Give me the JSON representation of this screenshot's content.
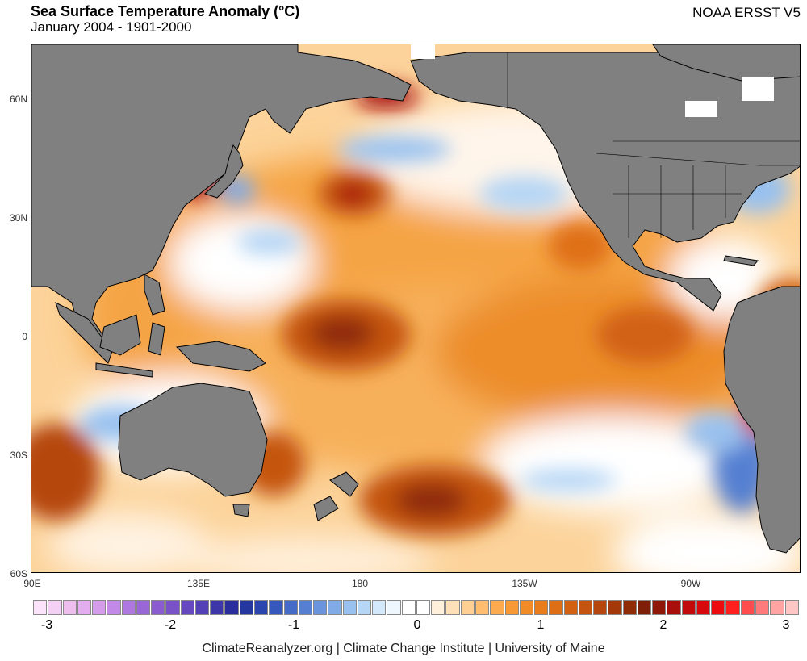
{
  "header": {
    "title": "Sea Surface Temperature Anomaly (°C)",
    "subtitle": "January 2004 - 1901-2000",
    "dataset": "NOAA ERSST V5"
  },
  "map": {
    "lat_labels": [
      "60N",
      "30N",
      "0",
      "30S",
      "60S"
    ],
    "lon_labels": [
      "90E",
      "135E",
      "180",
      "135W",
      "90W"
    ],
    "land_color": "#808080",
    "anomaly_features": [
      {
        "region": "Central Pacific north of Hawaii",
        "value": 1.8
      },
      {
        "region": "Equatorial West-Central Pacific",
        "value": 1.5
      },
      {
        "region": "South Pacific east of New Zealand",
        "value": 1.7
      },
      {
        "region": "Southeast Pacific off Chile",
        "value": -1.2
      },
      {
        "region": "North Pacific near 50N",
        "value": -0.6
      },
      {
        "region": "Peru coast",
        "value": 2.4
      },
      {
        "region": "Sea of Japan",
        "value": 2.0
      }
    ]
  },
  "colorbar": {
    "ticks": [
      "-3",
      "-2",
      "-1",
      "0",
      "1",
      "2",
      "3"
    ],
    "colors": [
      "#fbe3fb",
      "#f5d0f5",
      "#eebfee",
      "#e3adef",
      "#d49ceb",
      "#c28ae6",
      "#ae78e0",
      "#9a68d6",
      "#8a5cd0",
      "#7a52c8",
      "#6848c0",
      "#5440b6",
      "#3c36a8",
      "#2a2e9c",
      "#24379f",
      "#2a46ae",
      "#3558bc",
      "#446bc8",
      "#5580d2",
      "#6a95dc",
      "#80abe6",
      "#98c1ef",
      "#b5d6f5",
      "#d3e8fb",
      "#eef6fe",
      "#ffffff",
      "#ffffff",
      "#fff0db",
      "#ffdfb8",
      "#ffcf94",
      "#ffbd70",
      "#fcab4e",
      "#f79a35",
      "#f18b25",
      "#e97d1b",
      "#df6f15",
      "#d26212",
      "#c45410",
      "#b5460d",
      "#a3390b",
      "#8f2c08",
      "#7d2007",
      "#8f1708",
      "#a80f0a",
      "#c20a0c",
      "#d8090c",
      "#ec0b0e",
      "#ff1f1f",
      "#ff4d4d",
      "#ff7a7a",
      "#ffa3a3",
      "#ffc6c6"
    ]
  },
  "footer": {
    "credit": "ClimateReanalyzer.org | Climate Change Institute | University of Maine"
  }
}
